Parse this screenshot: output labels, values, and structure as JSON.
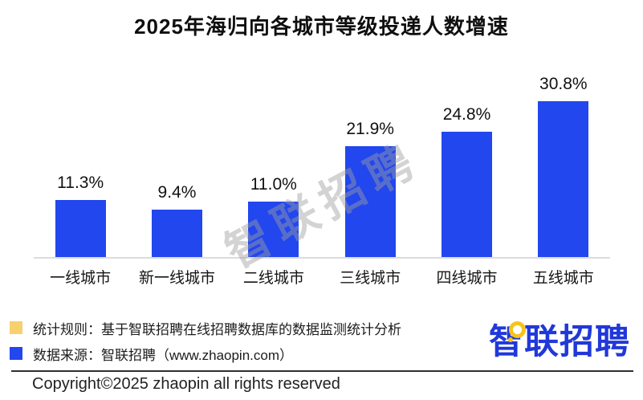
{
  "title": "2025年海归向各城市等级投递人数增速",
  "watermark_text": "智联招聘",
  "chart_data": {
    "type": "bar",
    "title": "2025年海归向各城市等级投递人数增速",
    "categories": [
      "一线城市",
      "新一线城市",
      "二线城市",
      "三线城市",
      "四线城市",
      "五线城市"
    ],
    "values": [
      11.3,
      9.4,
      11.0,
      21.9,
      24.8,
      30.8
    ],
    "value_labels": [
      "11.3%",
      "9.4%",
      "11.0%",
      "21.9%",
      "24.8%",
      "30.8%"
    ],
    "unit": "%",
    "xlabel": "",
    "ylabel": "",
    "ylim": [
      0,
      35
    ],
    "grid": false,
    "legend_position": "none",
    "bar_color": "#2247ee",
    "axis_line_color": "#dcdcdc"
  },
  "footnotes": [
    {
      "bullet_color": "#f8d06e",
      "text": "统计规则：基于智联招聘在线招聘数据库的数据监测统计分析"
    },
    {
      "bullet_color": "#2247ee",
      "text": "数据来源：智联招聘（www.zhaopin.com）"
    }
  ],
  "logo": {
    "text": "智联招聘",
    "color": "#2138d9",
    "bubble_color": "#f5c41c"
  },
  "copyright": "Copyright©2025 zhaopin all rights reserved"
}
